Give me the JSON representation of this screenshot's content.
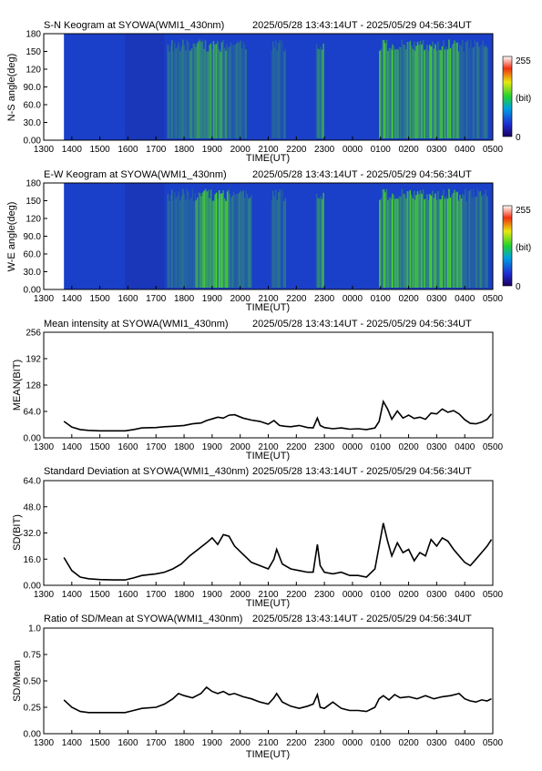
{
  "panels": {
    "sn_keogram": {
      "title_left": "S-N Keogram at SYOWA(WMI1_430nm)",
      "title_right": "2025/05/28 13:43:14UT - 2025/05/29 04:56:34UT",
      "ylabel": "N-S angle(deg)",
      "xlabel": "TIME(UT)",
      "yticks": [
        "0.00",
        "30.0",
        "60.0",
        "90.0",
        "120",
        "150",
        "180"
      ],
      "colorbar_max": "255",
      "colorbar_unit": "(bit)",
      "colorbar_min": "0"
    },
    "ew_keogram": {
      "title_left": "E-W Keogram at SYOWA(WMI1_430nm)",
      "title_right": "2025/05/28 13:43:14UT - 2025/05/29 04:56:34UT",
      "ylabel": "W-E angle(deg)",
      "xlabel": "TIME(UT)",
      "yticks": [
        "0.00",
        "30.0",
        "60.0",
        "90.0",
        "120",
        "150",
        "180"
      ],
      "colorbar_max": "255",
      "colorbar_unit": "(bit)",
      "colorbar_min": "0"
    },
    "mean": {
      "title_left": "Mean intensity at SYOWA(WMI1_430nm)",
      "title_right": "2025/05/28 13:43:14UT - 2025/05/29 04:56:34UT",
      "ylabel": "MEAN(BIT)",
      "xlabel": "TIME(UT)"
    },
    "sd": {
      "title_left": "Standard Deviation at SYOWA(WMI1_430nm)",
      "title_right": "2025/05/28 13:43:14UT - 2025/05/29 04:56:34UT",
      "ylabel": "SD(BIT)",
      "xlabel": "TIME(UT)"
    },
    "ratio": {
      "title_left": "Ratio of SD/Mean at SYOWA(WMI1_430nm)",
      "title_right": "2025/05/28 13:43:14UT - 2025/05/29 04:56:34UT",
      "ylabel": "SD/Mean",
      "xlabel": "TIME(UT)"
    }
  },
  "colors": {
    "line": "#000000",
    "keogram_bg": "#1a3fc8",
    "keogram_bright": "#4de21e"
  },
  "chart_data": [
    {
      "type": "heatmap",
      "panel": "sn_keogram",
      "x_ticks": [
        "1300",
        "1400",
        "1500",
        "1600",
        "1700",
        "1800",
        "1900",
        "2000",
        "2100",
        "2200",
        "2300",
        "0000",
        "0100",
        "0200",
        "0300",
        "0400",
        "0500"
      ],
      "x_range_hours": [
        13,
        29
      ],
      "ylim": [
        0,
        180
      ],
      "y_ticks": [
        0,
        30,
        60,
        90,
        120,
        150,
        180
      ],
      "colorbar_range": [
        0,
        255
      ],
      "data_start_hour": 13.72,
      "bright_bands": [
        {
          "t0": 17.4,
          "t1": 18.2,
          "level": 0.35
        },
        {
          "t0": 18.2,
          "t1": 19.5,
          "level": 0.55
        },
        {
          "t0": 19.5,
          "t1": 20.2,
          "level": 0.35
        },
        {
          "t0": 21.1,
          "t1": 21.6,
          "level": 0.25
        },
        {
          "t0": 22.7,
          "t1": 22.95,
          "level": 0.55
        },
        {
          "t0": 24.95,
          "t1": 25.4,
          "level": 0.9
        },
        {
          "t0": 25.4,
          "t1": 26.2,
          "level": 0.55
        },
        {
          "t0": 26.2,
          "t1": 27.8,
          "level": 0.7
        },
        {
          "t0": 27.8,
          "t1": 28.8,
          "level": 0.3
        }
      ]
    },
    {
      "type": "heatmap",
      "panel": "ew_keogram",
      "x_ticks": [
        "1300",
        "1400",
        "1500",
        "1600",
        "1700",
        "1800",
        "1900",
        "2000",
        "2100",
        "2200",
        "2300",
        "0000",
        "0100",
        "0200",
        "0300",
        "0400",
        "0500"
      ],
      "x_range_hours": [
        13,
        29
      ],
      "ylim": [
        0,
        180
      ],
      "y_ticks": [
        0,
        30,
        60,
        90,
        120,
        150,
        180
      ],
      "colorbar_range": [
        0,
        255
      ],
      "data_start_hour": 13.72,
      "bright_bands": [
        {
          "t0": 17.4,
          "t1": 18.4,
          "level": 0.3
        },
        {
          "t0": 18.4,
          "t1": 19.6,
          "level": 0.75
        },
        {
          "t0": 19.6,
          "t1": 20.4,
          "level": 0.4
        },
        {
          "t0": 21.1,
          "t1": 21.6,
          "level": 0.3
        },
        {
          "t0": 22.7,
          "t1": 22.95,
          "level": 0.6
        },
        {
          "t0": 24.95,
          "t1": 25.4,
          "level": 0.9
        },
        {
          "t0": 25.4,
          "t1": 26.2,
          "level": 0.7
        },
        {
          "t0": 26.2,
          "t1": 27.9,
          "level": 0.75
        },
        {
          "t0": 27.9,
          "t1": 28.8,
          "level": 0.35
        }
      ]
    },
    {
      "type": "line",
      "panel": "mean",
      "x_ticks": [
        "1300",
        "1400",
        "1500",
        "1600",
        "1700",
        "1800",
        "1900",
        "2000",
        "2100",
        "2200",
        "2300",
        "0000",
        "0100",
        "0200",
        "0300",
        "0400",
        "0500"
      ],
      "x_range_hours": [
        13,
        29
      ],
      "ylim": [
        0,
        256
      ],
      "y_ticks": [
        "0.00",
        "64.0",
        "128",
        "192",
        "256"
      ],
      "y_tick_values": [
        0,
        64,
        128,
        192,
        256
      ],
      "x": [
        13.72,
        14.0,
        14.3,
        14.6,
        15.0,
        15.5,
        15.9,
        16.2,
        16.5,
        17.0,
        17.3,
        17.6,
        18.0,
        18.3,
        18.6,
        18.8,
        19.0,
        19.2,
        19.4,
        19.6,
        19.8,
        20.1,
        20.4,
        20.7,
        21.0,
        21.2,
        21.4,
        21.6,
        21.8,
        22.1,
        22.4,
        22.6,
        22.75,
        22.85,
        23.0,
        23.3,
        23.6,
        23.9,
        24.2,
        24.5,
        24.8,
        24.95,
        25.1,
        25.25,
        25.4,
        25.6,
        25.8,
        26.0,
        26.2,
        26.4,
        26.6,
        26.8,
        27.0,
        27.2,
        27.4,
        27.6,
        27.8,
        28.0,
        28.2,
        28.4,
        28.6,
        28.8,
        28.95
      ],
      "y": [
        40,
        26,
        20,
        18,
        17,
        17,
        17,
        20,
        24,
        25,
        27,
        28,
        30,
        34,
        36,
        42,
        46,
        50,
        48,
        55,
        56,
        48,
        43,
        40,
        33,
        42,
        30,
        28,
        27,
        30,
        25,
        24,
        48,
        30,
        25,
        22,
        24,
        21,
        22,
        20,
        24,
        40,
        88,
        70,
        45,
        65,
        48,
        55,
        47,
        50,
        45,
        60,
        58,
        70,
        62,
        66,
        58,
        44,
        35,
        34,
        38,
        45,
        58
      ]
    },
    {
      "type": "line",
      "panel": "sd",
      "x_ticks": [
        "1300",
        "1400",
        "1500",
        "1600",
        "1700",
        "1800",
        "1900",
        "2000",
        "2100",
        "2200",
        "2300",
        "0000",
        "0100",
        "0200",
        "0300",
        "0400",
        "0500"
      ],
      "x_range_hours": [
        13,
        29
      ],
      "ylim": [
        0,
        64
      ],
      "y_ticks": [
        "0.00",
        "16.0",
        "32.0",
        "48.0",
        "64.0"
      ],
      "y_tick_values": [
        0,
        16,
        32,
        48,
        64
      ],
      "x": [
        13.72,
        14.0,
        14.3,
        14.6,
        15.0,
        15.5,
        15.9,
        16.2,
        16.5,
        17.0,
        17.3,
        17.6,
        17.9,
        18.2,
        18.5,
        18.8,
        19.0,
        19.2,
        19.4,
        19.6,
        19.8,
        20.1,
        20.4,
        20.7,
        21.0,
        21.2,
        21.3,
        21.5,
        21.8,
        22.1,
        22.4,
        22.6,
        22.75,
        22.85,
        23.0,
        23.3,
        23.6,
        23.9,
        24.2,
        24.5,
        24.8,
        24.95,
        25.1,
        25.25,
        25.4,
        25.6,
        25.8,
        26.0,
        26.2,
        26.4,
        26.6,
        26.8,
        27.0,
        27.2,
        27.4,
        27.6,
        27.8,
        28.0,
        28.2,
        28.4,
        28.6,
        28.8,
        28.95
      ],
      "y": [
        17,
        9,
        5,
        4,
        3.5,
        3.3,
        3.3,
        4.5,
        6,
        7,
        8,
        10,
        13,
        18,
        22,
        26,
        29,
        25,
        31,
        30,
        24,
        19,
        14,
        12,
        10,
        16,
        22,
        13,
        10,
        9,
        8,
        8,
        25,
        12,
        8,
        7,
        8,
        6,
        6,
        5,
        10,
        24,
        38,
        27,
        18,
        26,
        20,
        22,
        15,
        20,
        18,
        28,
        24,
        29,
        27,
        22,
        18,
        14,
        12,
        16,
        20,
        24,
        28
      ]
    },
    {
      "type": "line",
      "panel": "ratio",
      "x_ticks": [
        "1300",
        "1400",
        "1500",
        "1600",
        "1700",
        "1800",
        "1900",
        "2000",
        "2100",
        "2200",
        "2300",
        "0000",
        "0100",
        "0200",
        "0300",
        "0400",
        "0500"
      ],
      "x_range_hours": [
        13,
        29
      ],
      "ylim": [
        0,
        1
      ],
      "y_ticks": [
        "0.00",
        "0.25",
        "0.50",
        "0.75",
        "1.0"
      ],
      "y_tick_values": [
        0,
        0.25,
        0.5,
        0.75,
        1.0
      ],
      "x": [
        13.72,
        14.0,
        14.3,
        14.6,
        15.0,
        15.5,
        15.9,
        16.2,
        16.5,
        17.0,
        17.3,
        17.6,
        17.8,
        18.0,
        18.3,
        18.6,
        18.8,
        19.0,
        19.2,
        19.4,
        19.6,
        19.8,
        20.1,
        20.4,
        20.7,
        21.0,
        21.2,
        21.3,
        21.5,
        21.8,
        22.1,
        22.4,
        22.6,
        22.75,
        22.85,
        23.0,
        23.3,
        23.6,
        23.9,
        24.2,
        24.5,
        24.8,
        24.95,
        25.1,
        25.3,
        25.5,
        25.7,
        26.0,
        26.3,
        26.6,
        26.9,
        27.2,
        27.5,
        27.8,
        28.0,
        28.2,
        28.4,
        28.6,
        28.8,
        28.95
      ],
      "y": [
        0.32,
        0.25,
        0.21,
        0.2,
        0.2,
        0.2,
        0.2,
        0.22,
        0.24,
        0.25,
        0.28,
        0.33,
        0.38,
        0.36,
        0.34,
        0.38,
        0.44,
        0.4,
        0.38,
        0.4,
        0.37,
        0.38,
        0.35,
        0.33,
        0.3,
        0.28,
        0.34,
        0.38,
        0.3,
        0.26,
        0.24,
        0.26,
        0.28,
        0.37,
        0.25,
        0.24,
        0.3,
        0.24,
        0.22,
        0.22,
        0.21,
        0.25,
        0.33,
        0.36,
        0.32,
        0.37,
        0.34,
        0.35,
        0.33,
        0.36,
        0.33,
        0.35,
        0.36,
        0.38,
        0.33,
        0.31,
        0.3,
        0.32,
        0.31,
        0.33
      ]
    }
  ]
}
